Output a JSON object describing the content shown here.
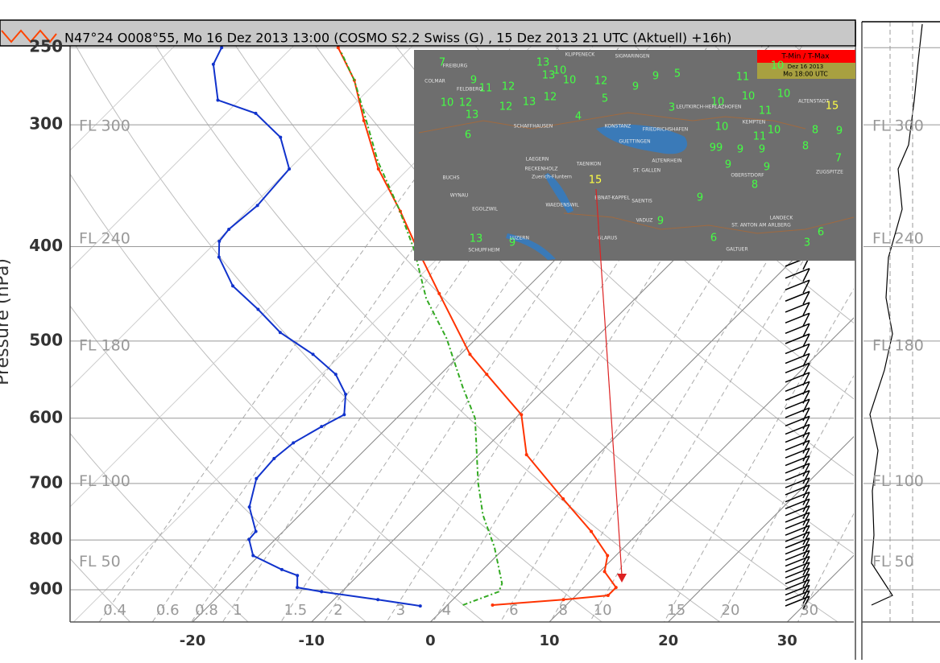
{
  "header": "N47°24 O008°55, Mo 16 Dez 2013 13:00 (COSMO  S2.2  Swiss (G) , 15 Dez 2013 21 UTC (Aktuell) +16h)",
  "chart_data": {
    "type": "skewt",
    "y_label": "Pressure (hPa)",
    "log_y": true,
    "skew": 1,
    "grid": true,
    "xlim": [
      -30.3,
      35.6
    ],
    "xticks": [
      -20,
      -10,
      0,
      10,
      20,
      30
    ],
    "ylim": [
      971,
      248
    ],
    "yticks": [
      250,
      300,
      400,
      500,
      600,
      700,
      800,
      900
    ],
    "flight_levels": [
      {
        "label": "FL 300",
        "pressure": 301
      },
      {
        "label": "FL 240",
        "pressure": 393
      },
      {
        "label": "FL 180",
        "pressure": 506
      },
      {
        "label": "FL 100",
        "pressure": 697
      },
      {
        "label": "FL 50",
        "pressure": 843
      }
    ],
    "mixing_ratios": [
      0.4,
      0.6,
      0.8,
      1,
      1.5,
      2,
      3,
      4,
      6,
      8,
      10,
      15,
      20,
      30
    ],
    "mixing_label_pressure": 921,
    "series": [
      {
        "color": "#ff3300",
        "dash": false,
        "x": [
          3.8,
          9.3,
          12.7,
          12.7,
          10.4,
          9.3,
          5.9,
          0.8,
          -6.0,
          -9.8,
          -16.1,
          -19.2,
          -26.9,
          -32.4,
          -37.1,
          -42.5,
          -47.8,
          -52.0,
          -56.1
        ],
        "y": [
          933,
          921,
          912,
          895,
          862,
          830,
          784,
          726,
          654,
          595,
          541,
          516,
          447,
          403,
          368,
          333,
          297,
          270,
          250
        ]
      },
      {
        "color": "#1133cc",
        "dash": false,
        "x": [
          -2.2,
          -6.3,
          -11.7,
          -14.1,
          -15.1,
          -16.9,
          -20.5,
          -22.2,
          -22.3,
          -24.9,
          -26.7,
          -26.9,
          -26.6,
          -25.6,
          -24.7,
          -26.3,
          -28.8,
          -32.4,
          -37.0,
          -40.8,
          -44.9,
          -48.5,
          -49.8,
          -50.0,
          -49.6,
          -50.0,
          -53.4,
          -57.5,
          -61.8,
          -65.2,
          -65.9
        ],
        "y": [
          935,
          921,
          904,
          895,
          870,
          858,
          830,
          799,
          784,
          740,
          692,
          660,
          636,
          612,
          595,
          567,
          541,
          516,
          490,
          464,
          439,
          410,
          395,
          384,
          363,
          333,
          309,
          292,
          283,
          260,
          250
        ]
      },
      {
        "color": "#33aa22",
        "dash": true,
        "x": [
          1.3,
          3.2,
          2.8,
          -0.9,
          -4.6,
          -7.7,
          -13.4,
          -17.1,
          -22.5,
          -27.6,
          -32.7,
          -37.4,
          -43.2,
          -47.6,
          -52.0,
          -55.4
        ],
        "y": [
          933,
          904,
          887,
          814,
          754,
          699,
          600,
          557,
          497,
          452,
          403,
          366,
          327,
          297,
          270,
          253
        ]
      }
    ]
  },
  "map": {
    "title": "T-Min / T-Max",
    "date": "Dez 16 2013",
    "time": "Mo 18:00 UTC",
    "values": [
      7,
      13,
      9,
      10,
      12,
      9,
      9,
      5,
      11,
      10,
      11,
      12,
      13,
      10,
      12,
      10,
      12,
      13,
      12,
      5,
      10,
      10,
      10,
      15,
      3,
      11,
      13,
      4,
      6,
      10,
      11,
      10,
      8,
      9,
      99,
      9,
      9,
      8,
      7,
      9,
      9,
      8,
      15,
      9,
      9,
      6,
      13,
      3,
      6,
      9
    ],
    "places": [
      "KLIPPENECK",
      "SIGMARINGEN",
      "FREIBURG",
      "COLMAR",
      "FELDBERG",
      "LEUTKIRCH-HERLAZHOFEN",
      "ALTENSTADT",
      "KEMPTEN",
      "SCHAFFHAUSEN",
      "KONSTANZ",
      "FRIEDRICHSHAFEN",
      "GUETTINGEN",
      "ZUGSPITZE",
      "OBERSTDORF",
      "ST. GALLEN",
      "ALTENRHEIN",
      "LAEGERN",
      "RECKENHOLZ",
      "Zuerich-Fluntern",
      "TAENIKON",
      "BUCHS",
      "WYNAU",
      "EBNAT-KAPPEL",
      "SAENTIS",
      "WAEDENSWIL",
      "VADUZ",
      "ST. ANTON AM ARLBERG",
      "GALTUER",
      "GLARUS",
      "LUZERN",
      "LANDECK",
      "SCHUPFHEIM",
      "EGOLZWIL"
    ]
  }
}
